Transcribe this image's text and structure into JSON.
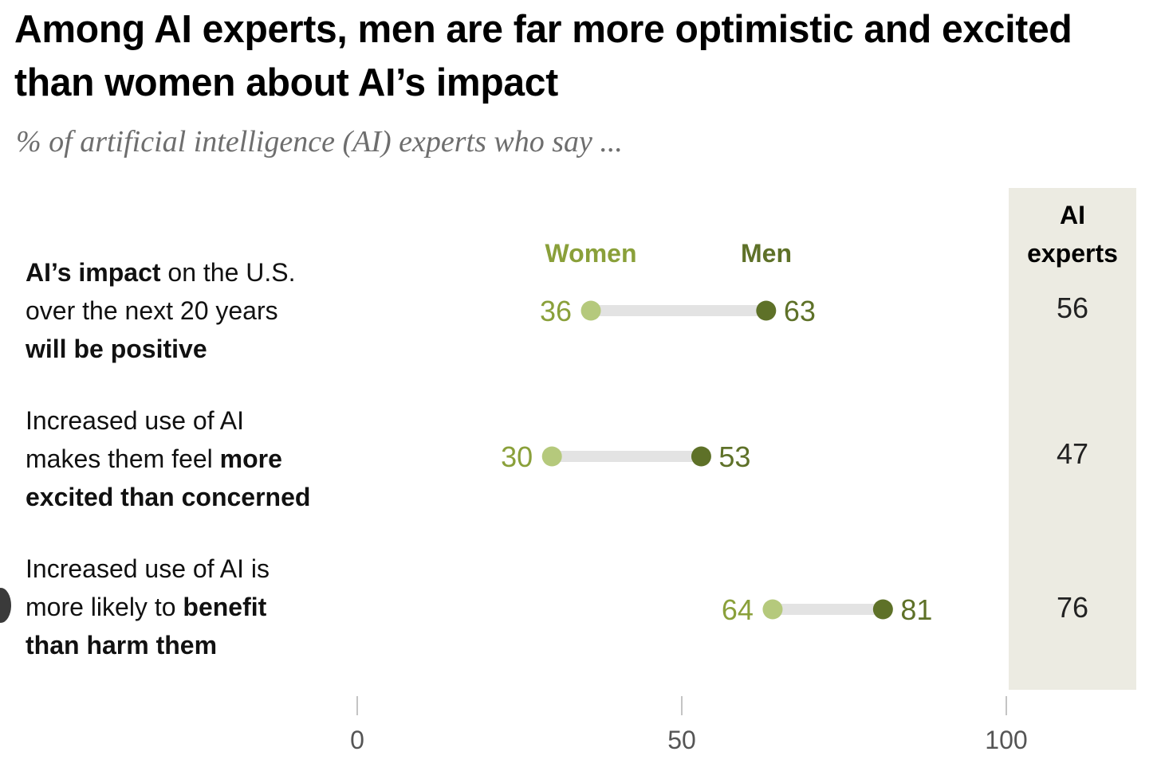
{
  "chart_data": {
    "type": "dot-range",
    "title": "Among AI experts, men are far more optimistic and excited than women about AI’s impact",
    "subtitle": "% of artificial intelligence (AI) experts who say ...",
    "xlim": [
      0,
      100
    ],
    "xticks": [
      0,
      50,
      100
    ],
    "xtick_labels": [
      "0",
      "50",
      "100"
    ],
    "legend": [
      {
        "name": "Women",
        "color": "#b5c97c",
        "label_color": "#8aa03a"
      },
      {
        "name": "Men",
        "color": "#5e7128",
        "label_color": "#5e7128"
      }
    ],
    "extra_column_header": [
      "AI",
      "experts"
    ],
    "categories": [
      {
        "label_parts": [
          {
            "text": "AI’s impact",
            "bold": true
          },
          {
            "text": " on the U.S. over the next 20 years ",
            "bold": false
          },
          {
            "text": "will be positive",
            "bold": true
          }
        ],
        "label_lines": [
          [
            {
              "text": "AI’s impact",
              "bold": true
            },
            {
              "text": " on the U.S.",
              "bold": false
            }
          ],
          [
            {
              "text": "over the next 20 years",
              "bold": false
            }
          ],
          [
            {
              "text": "will be positive",
              "bold": true
            }
          ]
        ],
        "women": 36,
        "men": 63,
        "ai_experts": 56
      },
      {
        "label_lines": [
          [
            {
              "text": "Increased use of AI",
              "bold": false
            }
          ],
          [
            {
              "text": "makes them feel ",
              "bold": false
            },
            {
              "text": "more",
              "bold": true
            }
          ],
          [
            {
              "text": "excited than concerned",
              "bold": true
            }
          ]
        ],
        "women": 30,
        "men": 53,
        "ai_experts": 47
      },
      {
        "label_lines": [
          [
            {
              "text": "Increased use of AI is",
              "bold": false
            }
          ],
          [
            {
              "text": "more likely to ",
              "bold": false
            },
            {
              "text": "benefit",
              "bold": true
            }
          ],
          [
            {
              "text": "than harm them",
              "bold": true
            }
          ]
        ],
        "women": 64,
        "men": 81,
        "ai_experts": 76
      }
    ],
    "colors": {
      "connector": "#e3e3e3",
      "axis_tick": "#b0b0b0",
      "axis_label": "#555555",
      "extra_column_bg": "#ecebe2"
    }
  }
}
